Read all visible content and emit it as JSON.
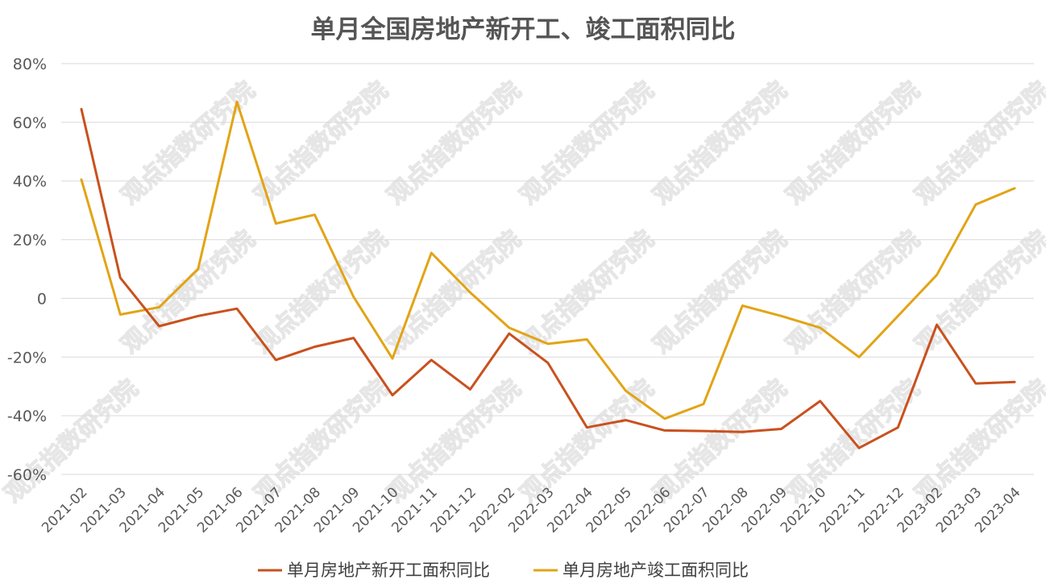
{
  "chart_data": {
    "type": "line",
    "title": "单月全国房地产新开工、竣工面积同比",
    "categories": [
      "2021-02",
      "2021-03",
      "2021-04",
      "2021-05",
      "2021-06",
      "2021-07",
      "2021-08",
      "2021-09",
      "2021-10",
      "2021-11",
      "2021-12",
      "2022-02",
      "2022-03",
      "2022-04",
      "2022-05",
      "2022-06",
      "2022-07",
      "2022-08",
      "2022-09",
      "2022-10",
      "2022-11",
      "2022-12",
      "2023-02",
      "2023-03",
      "2023-04"
    ],
    "y_ticks": [
      "80%",
      "60%",
      "40%",
      "20%",
      "0",
      "-20%",
      "-40%",
      "-60%"
    ],
    "ylim": [
      -60,
      80
    ],
    "grid": true,
    "legend_position": "bottom",
    "series": [
      {
        "name": "单月房地产新开工面积同比",
        "color": "#C9511E",
        "values": [
          64.5,
          7,
          -9.5,
          -6,
          -3.5,
          -21,
          -16.5,
          -13.5,
          -33,
          -21,
          -31,
          -12,
          -22,
          -44,
          -41.5,
          -45,
          -45.2,
          -45.5,
          -44.5,
          -35,
          -51,
          -44,
          -9,
          -29,
          -28.5
        ]
      },
      {
        "name": "单月房地产竣工面积同比",
        "color": "#E2A416",
        "values": [
          40.5,
          -5.5,
          -3,
          10,
          67,
          25.5,
          28.5,
          0.5,
          -20.5,
          15.5,
          2,
          -10,
          -15.5,
          -14,
          -31.5,
          -41,
          -36,
          -2.5,
          -6,
          -10,
          -20,
          -6,
          8,
          32,
          37.5
        ]
      }
    ]
  },
  "watermark": "观点指数研究院"
}
